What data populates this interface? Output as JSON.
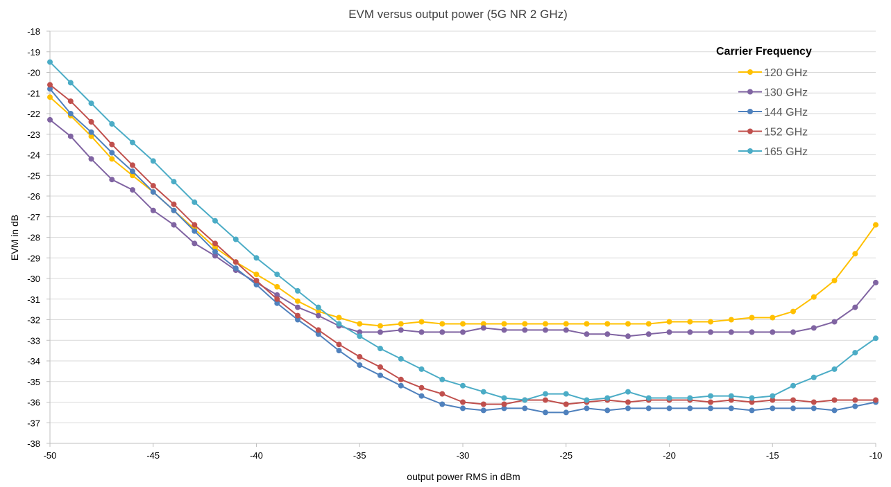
{
  "chart_data": {
    "type": "line",
    "title": "EVM versus output power (5G NR 2 GHz)",
    "xlabel": "output power RMS in dBm",
    "ylabel": "EVM in dB",
    "xlim": [
      -50,
      -10
    ],
    "ylim": [
      -38,
      -18
    ],
    "xticks": [
      -50,
      -45,
      -40,
      -35,
      -30,
      -25,
      -20,
      -15,
      -10
    ],
    "yticks": [
      -18,
      -19,
      -20,
      -21,
      -22,
      -23,
      -24,
      -25,
      -26,
      -27,
      -28,
      -29,
      -30,
      -31,
      -32,
      -33,
      -34,
      -35,
      -36,
      -37,
      -38
    ],
    "grid": "horizontal",
    "legend": {
      "title": "Carrier Frequency",
      "position": "top-right"
    },
    "x": [
      -50,
      -49,
      -48,
      -47,
      -46,
      -45,
      -44,
      -43,
      -42,
      -41,
      -40,
      -39,
      -38,
      -37,
      -36,
      -35,
      -34,
      -33,
      -32,
      -31,
      -30,
      -29,
      -28,
      -27,
      -26,
      -25,
      -24,
      -23,
      -22,
      -21,
      -20,
      -19,
      -18,
      -17,
      -16,
      -15,
      -14,
      -13,
      -12,
      -11,
      -10
    ],
    "series": [
      {
        "name": "120 GHz",
        "color": "#FFC000",
        "values": [
          -21.2,
          -22.1,
          -23.1,
          -24.2,
          -25.0,
          -25.8,
          -26.7,
          -27.6,
          -28.5,
          -29.2,
          -29.8,
          -30.4,
          -31.1,
          -31.6,
          -31.9,
          -32.2,
          -32.3,
          -32.2,
          -32.1,
          -32.2,
          -32.2,
          -32.2,
          -32.2,
          -32.2,
          -32.2,
          -32.2,
          -32.2,
          -32.2,
          -32.2,
          -32.2,
          -32.1,
          -32.1,
          -32.1,
          -32.0,
          -31.9,
          -31.9,
          -31.6,
          -30.9,
          -30.1,
          -28.8,
          -27.4
        ]
      },
      {
        "name": "130 GHz",
        "color": "#8064A2",
        "values": [
          -22.3,
          -23.1,
          -24.2,
          -25.2,
          -25.7,
          -26.7,
          -27.4,
          -28.3,
          -28.9,
          -29.6,
          -30.2,
          -30.8,
          -31.4,
          -31.8,
          -32.3,
          -32.6,
          -32.6,
          -32.5,
          -32.6,
          -32.6,
          -32.6,
          -32.4,
          -32.5,
          -32.5,
          -32.5,
          -32.5,
          -32.7,
          -32.7,
          -32.8,
          -32.7,
          -32.6,
          -32.6,
          -32.6,
          -32.6,
          -32.6,
          -32.6,
          -32.6,
          -32.4,
          -32.1,
          -31.4,
          -30.2
        ]
      },
      {
        "name": "144 GHz",
        "color": "#4F81BD",
        "values": [
          -20.8,
          -22.0,
          -22.9,
          -23.9,
          -24.8,
          -25.8,
          -26.7,
          -27.7,
          -28.7,
          -29.5,
          -30.3,
          -31.2,
          -32.0,
          -32.7,
          -33.5,
          -34.2,
          -34.7,
          -35.2,
          -35.7,
          -36.1,
          -36.3,
          -36.4,
          -36.3,
          -36.3,
          -36.5,
          -36.5,
          -36.3,
          -36.4,
          -36.3,
          -36.3,
          -36.3,
          -36.3,
          -36.3,
          -36.3,
          -36.4,
          -36.3,
          -36.3,
          -36.3,
          -36.4,
          -36.2,
          -36.0
        ]
      },
      {
        "name": "152 GHz",
        "color": "#C0504D",
        "values": [
          -20.6,
          -21.4,
          -22.4,
          -23.5,
          -24.5,
          -25.5,
          -26.4,
          -27.4,
          -28.3,
          -29.2,
          -30.1,
          -31.0,
          -31.8,
          -32.5,
          -33.2,
          -33.8,
          -34.3,
          -34.9,
          -35.3,
          -35.6,
          -36.0,
          -36.1,
          -36.1,
          -35.9,
          -35.9,
          -36.1,
          -36.0,
          -35.9,
          -36.0,
          -35.9,
          -35.9,
          -35.9,
          -36.0,
          -35.9,
          -36.0,
          -35.9,
          -35.9,
          -36.0,
          -35.9,
          -35.9,
          -35.9
        ]
      },
      {
        "name": "165 GHz",
        "color": "#4BACC6",
        "values": [
          -19.5,
          -20.5,
          -21.5,
          -22.5,
          -23.4,
          -24.3,
          -25.3,
          -26.3,
          -27.2,
          -28.1,
          -29.0,
          -29.8,
          -30.6,
          -31.4,
          -32.2,
          -32.8,
          -33.4,
          -33.9,
          -34.4,
          -34.9,
          -35.2,
          -35.5,
          -35.8,
          -35.9,
          -35.6,
          -35.6,
          -35.9,
          -35.8,
          -35.5,
          -35.8,
          -35.8,
          -35.8,
          -35.7,
          -35.7,
          -35.8,
          -35.7,
          -35.2,
          -34.8,
          -34.4,
          -33.6,
          -32.9
        ]
      }
    ]
  }
}
